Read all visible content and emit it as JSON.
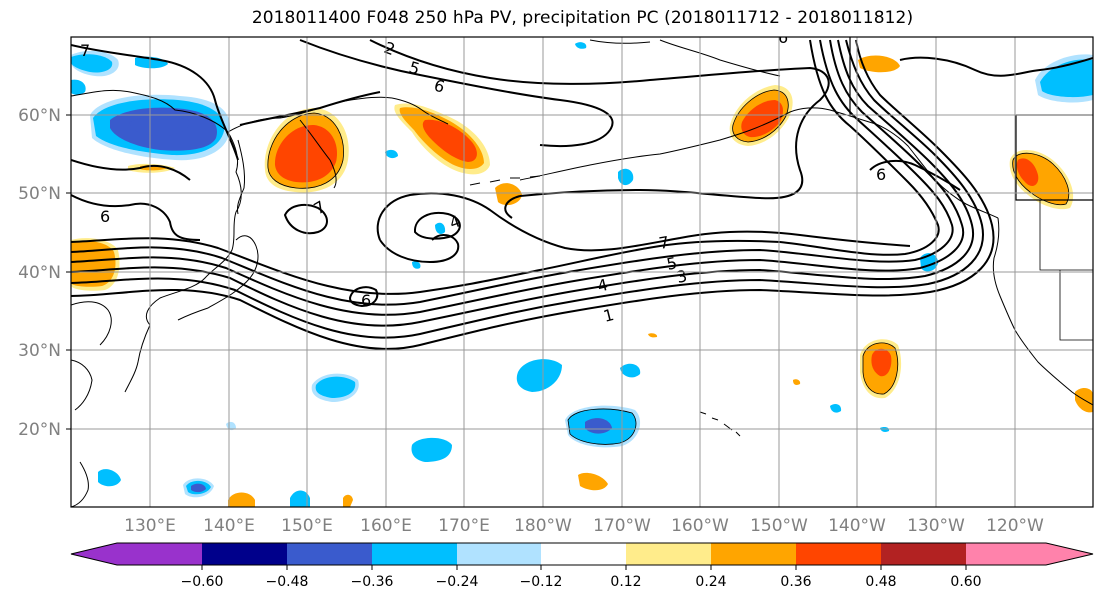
{
  "title": "2018011400 F048 250 hPa PV, precipitation PC (2018011712 - 2018011812)",
  "lat_labels": [
    "60°N",
    "50°N",
    "40°N",
    "30°N",
    "20°N"
  ],
  "lon_labels": [
    "130°E",
    "140°E",
    "150°E",
    "160°E",
    "170°E",
    "180°W",
    "170°W",
    "160°W",
    "150°W",
    "140°W",
    "130°W",
    "120°W"
  ],
  "pv_contour_labels": [
    "1",
    "3",
    "4",
    "5",
    "7",
    "6",
    "6",
    "5",
    "6",
    "7",
    "4",
    "6",
    "7",
    "6",
    "2"
  ],
  "colorbar": {
    "tick_labels": [
      "−0.60",
      "−0.48",
      "−0.36",
      "−0.24",
      "−0.12",
      "0.12",
      "0.24",
      "0.36",
      "0.48",
      "0.60"
    ],
    "colors": [
      "#9932cc",
      "#00008b",
      "#3a5bcd",
      "#00bfff",
      "#b0e2ff",
      "#ffffff",
      "#ffec8b",
      "#ffa500",
      "#ff4500",
      "#b22222",
      "#ff82ab"
    ]
  },
  "colors": {
    "contour": "#000000",
    "grid": "#999999",
    "coast": "#000000",
    "axis_text": "#808080"
  }
}
